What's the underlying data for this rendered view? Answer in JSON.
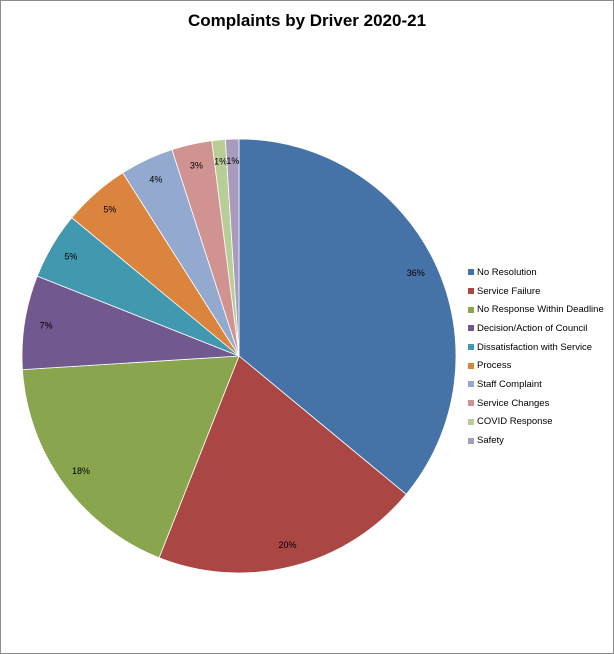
{
  "chart_data": {
    "type": "pie",
    "title": "Complaints by Driver 2020-21",
    "categories": [
      "No Resolution",
      "Service Failure",
      "No Response Within Deadline",
      "Decision/Action of Council",
      "Dissatisfaction with Service",
      "Process",
      "Staff Complaint",
      "Service Changes",
      "COVID Response",
      "Safety"
    ],
    "values": [
      36,
      20,
      18,
      7,
      5,
      5,
      4,
      3,
      1,
      1
    ],
    "data_labels": [
      "36%",
      "20%",
      "18%",
      "7%",
      "5%",
      "5%",
      "4%",
      "3%",
      "1%",
      "1%"
    ],
    "colors": [
      "#4572A7",
      "#AA4643",
      "#89A54E",
      "#71588F",
      "#4198AF",
      "#DB843D",
      "#93A9CF",
      "#D19392",
      "#B9CD96",
      "#A99BBD"
    ],
    "legend_position": "right"
  }
}
